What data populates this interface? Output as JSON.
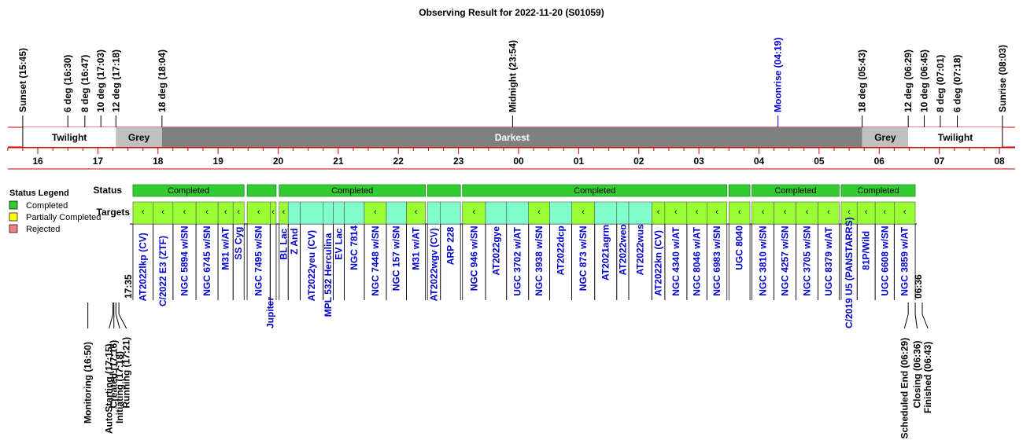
{
  "chart_data": {
    "type": "timeline",
    "title": "Observing Result for 2022-11-20 (S01059)",
    "colors": {
      "twilight": "#ffffff",
      "grey": "#c0c0c0",
      "darkest": "#808080",
      "completed": "#33cc33",
      "target_green": "#99ff33",
      "target_cyan": "#80ffcc",
      "partial": "#ffff00",
      "rejected": "#f08080",
      "text_black": "#000000",
      "text_blue": "#0000cc",
      "red": "#cc0000"
    },
    "ephemeris": [
      {
        "label": "Sunset (15:45)",
        "time": "15:45",
        "color": "black"
      },
      {
        "label": "6 deg (16:30)",
        "time": "16:30",
        "color": "black"
      },
      {
        "label": "8 deg (16:47)",
        "time": "16:47",
        "color": "black"
      },
      {
        "label": "10 deg (17:03)",
        "time": "17:03",
        "color": "black"
      },
      {
        "label": "12 deg (17:18)",
        "time": "17:18",
        "color": "black"
      },
      {
        "label": "18 deg (18:04)",
        "time": "18:04",
        "color": "black"
      },
      {
        "label": "Midnight (23:54)",
        "time": "23:54",
        "color": "black"
      },
      {
        "label": "Moonrise (04:19)",
        "time": "04:19",
        "color": "blue"
      },
      {
        "label": "18 deg (05:43)",
        "time": "05:43",
        "color": "black"
      },
      {
        "label": "12 deg (06:29)",
        "time": "06:29",
        "color": "black"
      },
      {
        "label": "10 deg (06:45)",
        "time": "06:45",
        "color": "black"
      },
      {
        "label": "8 deg (07:01)",
        "time": "07:01",
        "color": "black"
      },
      {
        "label": "6 deg (07:18)",
        "time": "07:18",
        "color": "black"
      },
      {
        "label": "Sunrise (08:03)",
        "time": "08:03",
        "color": "black"
      }
    ],
    "bands": [
      {
        "label": "Twilight",
        "start": "15:45",
        "end": "17:18",
        "kind": "twilight"
      },
      {
        "label": "Grey",
        "start": "17:18",
        "end": "18:04",
        "kind": "grey"
      },
      {
        "label": "Darkest",
        "start": "18:04",
        "end": "05:43",
        "kind": "darkest"
      },
      {
        "label": "Grey",
        "start": "05:43",
        "end": "06:29",
        "kind": "grey"
      },
      {
        "label": "Twilight",
        "start": "06:29",
        "end": "08:03",
        "kind": "twilight"
      }
    ],
    "hour_ticks": [
      "16",
      "17",
      "18",
      "19",
      "20",
      "21",
      "22",
      "23",
      "00",
      "01",
      "02",
      "03",
      "04",
      "05",
      "06",
      "07",
      "08"
    ],
    "row_labels": {
      "status": "Status",
      "targets": "Targets"
    },
    "status_blocks": [
      {
        "label": "Completed",
        "start": "17:35",
        "end": "19:26"
      },
      {
        "label": "",
        "start": "19:29",
        "end": "19:58"
      },
      {
        "label": "Completed",
        "start": "20:01",
        "end": "22:27"
      },
      {
        "label": "",
        "start": "22:29",
        "end": "23:02"
      },
      {
        "label": "Completed",
        "start": "23:04",
        "end": "03:28"
      },
      {
        "label": "",
        "start": "03:30",
        "end": "03:51"
      },
      {
        "label": "Completed",
        "start": "03:53",
        "end": "05:20"
      },
      {
        "label": "Completed",
        "start": "05:22",
        "end": "06:36"
      }
    ],
    "targets": [
      {
        "name": "AT2022lkp (CV)",
        "start": "17:35",
        "end": "17:55",
        "fill": "green",
        "mark": "‹"
      },
      {
        "name": "C/2022 E3 (ZTF)",
        "start": "17:55",
        "end": "18:15",
        "fill": "green",
        "mark": "‹"
      },
      {
        "name": "NGC 5894 w/SN",
        "start": "18:15",
        "end": "18:38",
        "fill": "green",
        "mark": "‹"
      },
      {
        "name": "NGC 6745 w/SN",
        "start": "18:38",
        "end": "19:00",
        "fill": "green",
        "mark": "‹"
      },
      {
        "name": "M31 w/AT",
        "start": "19:00",
        "end": "19:15",
        "fill": "green",
        "mark": "‹"
      },
      {
        "name": "SS Cyg",
        "start": "19:15",
        "end": "19:26",
        "fill": "green",
        "mark": "‹"
      },
      {
        "name": "NGC 7495 w/SN",
        "start": "19:29",
        "end": "19:52",
        "fill": "green",
        "mark": "‹"
      },
      {
        "name": "",
        "start": "19:52",
        "end": "19:58",
        "fill": "green",
        "mark": "‹"
      },
      {
        "name": "BL Lac",
        "start": "20:01",
        "end": "20:10",
        "fill": "green",
        "mark": "‹"
      },
      {
        "name": "Z And",
        "start": "20:10",
        "end": "20:22",
        "fill": "cyan",
        "mark": ""
      },
      {
        "name": "AT2022yeu (CV)",
        "start": "20:22",
        "end": "20:45",
        "fill": "cyan",
        "mark": ""
      },
      {
        "name": "MPL 532 Herculina",
        "start": "20:45",
        "end": "20:55",
        "fill": "cyan",
        "mark": ""
      },
      {
        "name": "EV Lac",
        "start": "20:55",
        "end": "21:06",
        "fill": "cyan",
        "mark": ""
      },
      {
        "name": "NGC 7814",
        "start": "21:06",
        "end": "21:26",
        "fill": "cyan",
        "mark": ""
      },
      {
        "name": "NGC 7448 w/SN",
        "start": "21:26",
        "end": "21:48",
        "fill": "green",
        "mark": "‹"
      },
      {
        "name": "NGC 157 w/SN",
        "start": "21:48",
        "end": "22:08",
        "fill": "cyan",
        "mark": ""
      },
      {
        "name": "M31 w/AT",
        "start": "22:08",
        "end": "22:27",
        "fill": "green",
        "mark": "‹"
      },
      {
        "name": "AT2022wgv (CV)",
        "start": "22:29",
        "end": "22:42",
        "fill": "cyan",
        "mark": ""
      },
      {
        "name": "ARP 228",
        "start": "22:42",
        "end": "23:02",
        "fill": "cyan",
        "mark": ""
      },
      {
        "name": "NGC 946 w/SN",
        "start": "23:04",
        "end": "23:27",
        "fill": "green",
        "mark": "‹"
      },
      {
        "name": "AT2022gye",
        "start": "23:27",
        "end": "23:48",
        "fill": "cyan",
        "mark": ""
      },
      {
        "name": "UGC 3702 w/AT",
        "start": "23:48",
        "end": "00:10",
        "fill": "cyan",
        "mark": ""
      },
      {
        "name": "NGC 3938 w/SN",
        "start": "00:10",
        "end": "00:31",
        "fill": "green",
        "mark": "‹"
      },
      {
        "name": "AT2022dcp",
        "start": "00:31",
        "end": "00:53",
        "fill": "cyan",
        "mark": ""
      },
      {
        "name": "NGC 873 w/SN",
        "start": "00:53",
        "end": "01:16",
        "fill": "green",
        "mark": "‹"
      },
      {
        "name": "AT2021agrm",
        "start": "01:16",
        "end": "01:38",
        "fill": "cyan",
        "mark": ""
      },
      {
        "name": "AT2022weo",
        "start": "01:38",
        "end": "01:50",
        "fill": "cyan",
        "mark": ""
      },
      {
        "name": "AT2022wus",
        "start": "01:50",
        "end": "02:13",
        "fill": "cyan",
        "mark": ""
      },
      {
        "name": "AT2022kn (CV)",
        "start": "02:13",
        "end": "02:26",
        "fill": "green",
        "mark": "‹"
      },
      {
        "name": "NGC 4340 w/AT",
        "start": "02:26",
        "end": "02:48",
        "fill": "green",
        "mark": "‹"
      },
      {
        "name": "NGC 8046 w/AT",
        "start": "02:48",
        "end": "03:08",
        "fill": "green",
        "mark": "‹"
      },
      {
        "name": "NGC 6983 w/SN",
        "start": "03:08",
        "end": "03:28",
        "fill": "green",
        "mark": "‹"
      },
      {
        "name": "UGC 8040",
        "start": "03:30",
        "end": "03:51",
        "fill": "green",
        "mark": "‹"
      },
      {
        "name": "NGC 3810 w/SN",
        "start": "03:53",
        "end": "04:15",
        "fill": "green",
        "mark": "‹"
      },
      {
        "name": "NGC 4257 w/SN",
        "start": "04:15",
        "end": "04:37",
        "fill": "green",
        "mark": "‹"
      },
      {
        "name": "NGC 3705 w/SN",
        "start": "04:37",
        "end": "04:59",
        "fill": "green",
        "mark": "‹"
      },
      {
        "name": "UGC 8379 w/AT",
        "start": "04:59",
        "end": "05:20",
        "fill": "green",
        "mark": "‹"
      },
      {
        "name": "C/2019 U5 (PANSTARRS)",
        "start": "05:22",
        "end": "05:38",
        "fill": "green",
        "mark": "‹"
      },
      {
        "name": "81P/Wild",
        "start": "05:38",
        "end": "05:56",
        "fill": "green",
        "mark": "‹"
      },
      {
        "name": "UGC 6608 w/SN",
        "start": "05:56",
        "end": "06:15",
        "fill": "green",
        "mark": "‹"
      },
      {
        "name": "NGC 3859 w/AT",
        "start": "06:15",
        "end": "06:36",
        "fill": "green",
        "mark": "‹"
      }
    ],
    "blue_target_labels": [
      "Jupiter",
      "C/2019 U5 (PANSTARRS)"
    ],
    "jupiter": {
      "label": "Jupiter",
      "time": "19:52"
    },
    "start_time_label": {
      "label": "17:35",
      "time": "17:35"
    },
    "end_time_label": {
      "label": "06:36",
      "time": "06:36"
    },
    "events": [
      {
        "label": "Monitoring (16:50)",
        "time": "16:50"
      },
      {
        "label": "AutoStarting (17:15)",
        "time": "17:15"
      },
      {
        "label": "Created (17:16)",
        "time": "17:16"
      },
      {
        "label": "Initiating (17:18)",
        "time": "17:18"
      },
      {
        "label": "Running (17:21)",
        "time": "17:21"
      },
      {
        "label": "Scheduled End (06:29)",
        "time": "06:29"
      },
      {
        "label": "Closing (06:36)",
        "time": "06:36"
      },
      {
        "label": "Finished (06:43)",
        "time": "06:43"
      }
    ],
    "legend": {
      "title": "Status Legend",
      "items": [
        {
          "label": "Completed",
          "color": "#33cc33"
        },
        {
          "label": "Partially Completed",
          "color": "#ffff00"
        },
        {
          "label": "Rejected",
          "color": "#f08080"
        }
      ]
    }
  }
}
